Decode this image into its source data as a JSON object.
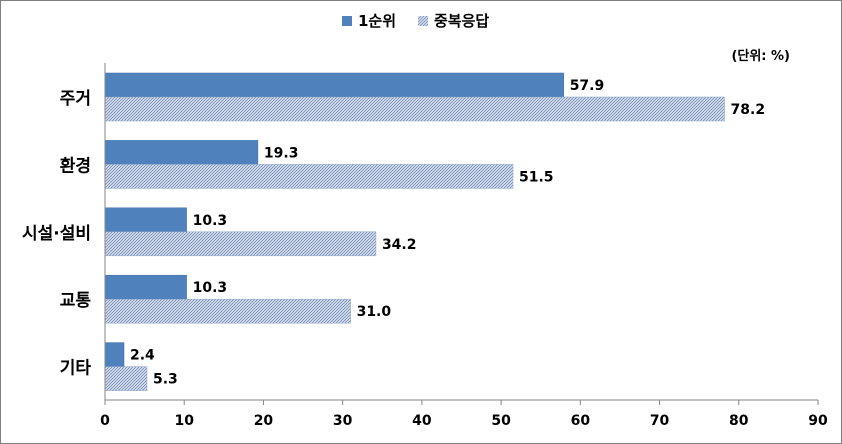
{
  "chart_data": {
    "type": "bar",
    "orientation": "horizontal",
    "unit_note": "(단위: %)",
    "categories": [
      "주거",
      "환경",
      "시설·설비",
      "교통",
      "기타"
    ],
    "series": [
      {
        "name": "1순위",
        "values": [
          57.9,
          19.3,
          10.3,
          10.3,
          2.4
        ],
        "color": "#4f81bd",
        "pattern": "solid"
      },
      {
        "name": "중복응답",
        "values": [
          78.2,
          51.5,
          34.2,
          31.0,
          5.3
        ],
        "color": "#c6d2e6",
        "pattern": "hatched"
      }
    ],
    "xlim": [
      0,
      90
    ],
    "xticks": [
      0,
      10,
      20,
      30,
      40,
      50,
      60,
      70,
      80,
      90
    ],
    "legend_position": "top",
    "grid": false,
    "data_labels": true
  }
}
